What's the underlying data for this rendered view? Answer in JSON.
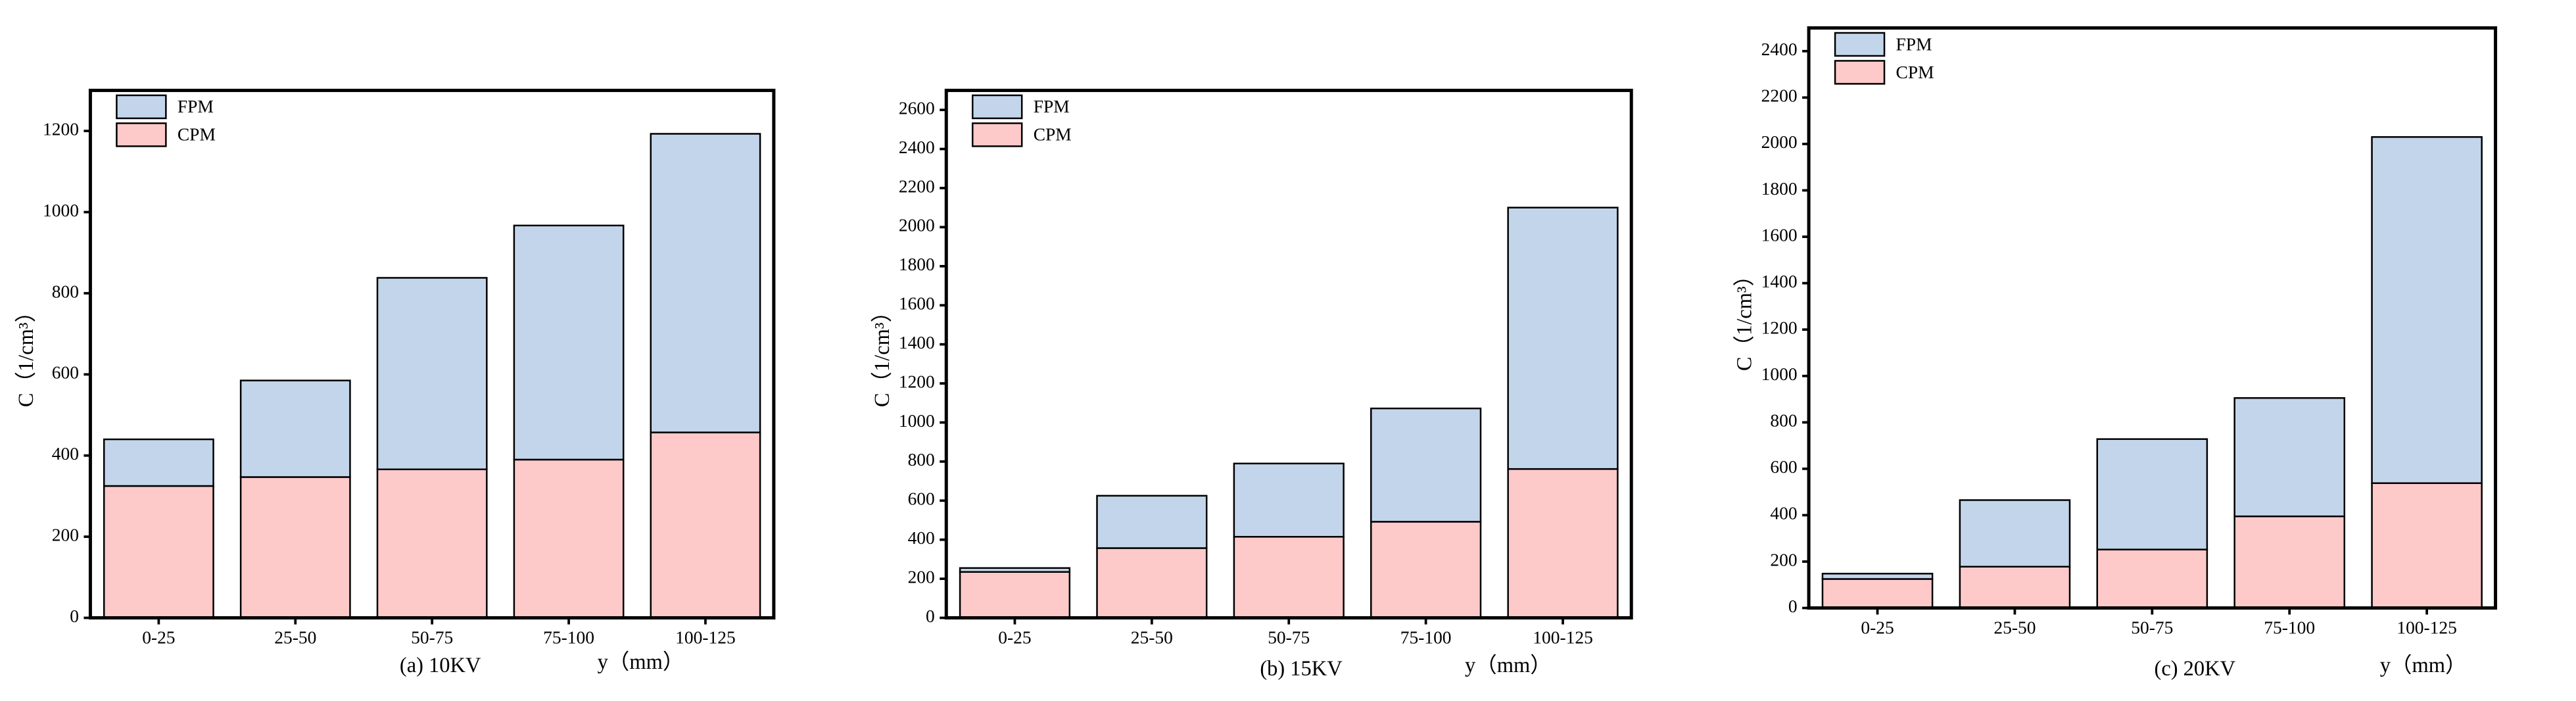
{
  "chart_data": [
    {
      "type": "stacked-bar",
      "caption": "(a)  10KV",
      "x_label": "y（mm）",
      "y_label": "C（1/cm³）",
      "categories": [
        "0-25",
        "25-50",
        "50-75",
        "75-100",
        "100-125"
      ],
      "series": [
        {
          "name": "CPM",
          "color": "#fdc9c9",
          "values": [
            325,
            347,
            366,
            390,
            457
          ]
        },
        {
          "name": "FPM",
          "color": "#c3d5ea",
          "values": [
            115,
            238,
            472,
            577,
            736
          ]
        }
      ],
      "ylim": [
        0,
        1300
      ],
      "yticks": [
        0,
        200,
        400,
        600,
        800,
        1000,
        1200
      ],
      "legend": "upper left",
      "grid": false
    },
    {
      "type": "stacked-bar",
      "caption": "(b)  15KV",
      "x_label": "y（mm）",
      "y_label": "C（1/cm³）",
      "categories": [
        "0-25",
        "25-50",
        "50-75",
        "75-100",
        "100-125"
      ],
      "series": [
        {
          "name": "CPM",
          "color": "#fdc9c9",
          "values": [
            235,
            357,
            415,
            492,
            762
          ]
        },
        {
          "name": "FPM",
          "color": "#c3d5ea",
          "values": [
            20,
            268,
            375,
            580,
            1338
          ]
        }
      ],
      "ylim": [
        0,
        2700
      ],
      "yticks": [
        0,
        200,
        400,
        600,
        800,
        1000,
        1200,
        1400,
        1600,
        1800,
        2000,
        2200,
        2400,
        2600
      ],
      "legend": "upper left",
      "grid": false
    },
    {
      "type": "stacked-bar",
      "caption": "(c)  20KV",
      "x_label": "y（mm）",
      "y_label": "C（1/cm³）",
      "categories": [
        "0-25",
        "25-50",
        "50-75",
        "75-100",
        "100-125"
      ],
      "series": [
        {
          "name": "CPM",
          "color": "#fdc9c9",
          "values": [
            125,
            178,
            252,
            395,
            538
          ]
        },
        {
          "name": "FPM",
          "color": "#c3d5ea",
          "values": [
            23,
            287,
            476,
            510,
            1492
          ]
        }
      ],
      "ylim": [
        0,
        2500
      ],
      "yticks": [
        0,
        200,
        400,
        600,
        800,
        1000,
        1200,
        1400,
        1600,
        1800,
        2000,
        2200,
        2400
      ],
      "legend": "upper left",
      "grid": false
    }
  ]
}
